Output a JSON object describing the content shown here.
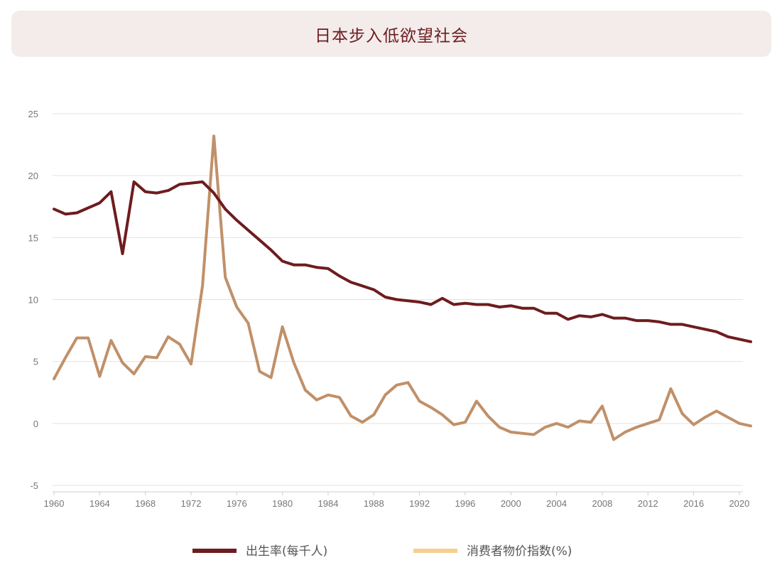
{
  "title": "日本步入低欲望社会",
  "chart_data": {
    "type": "line",
    "title": "日本步入低欲望社会",
    "xlabel": "",
    "ylabel": "",
    "xlim": [
      1960,
      2021
    ],
    "ylim": [
      -5,
      25
    ],
    "yticks": [
      -5,
      0,
      5,
      10,
      15,
      20,
      25
    ],
    "xticks": [
      1960,
      1964,
      1968,
      1972,
      1976,
      1980,
      1984,
      1988,
      1992,
      1996,
      2000,
      2004,
      2008,
      2012,
      2016,
      2020
    ],
    "grid": "horizontal",
    "legend": "bottom",
    "x": [
      1960,
      1961,
      1962,
      1963,
      1964,
      1965,
      1966,
      1967,
      1968,
      1969,
      1970,
      1971,
      1972,
      1973,
      1974,
      1975,
      1976,
      1977,
      1978,
      1979,
      1980,
      1981,
      1982,
      1983,
      1984,
      1985,
      1986,
      1987,
      1988,
      1989,
      1990,
      1991,
      1992,
      1993,
      1994,
      1995,
      1996,
      1997,
      1998,
      1999,
      2000,
      2001,
      2002,
      2003,
      2004,
      2005,
      2006,
      2007,
      2008,
      2009,
      2010,
      2011,
      2012,
      2013,
      2014,
      2015,
      2016,
      2017,
      2018,
      2019,
      2020,
      2021
    ],
    "series": [
      {
        "name": "出生率(每千人)",
        "color": "#6e1c1f",
        "values": [
          17.3,
          16.9,
          17.0,
          17.4,
          17.8,
          18.7,
          13.7,
          19.5,
          18.7,
          18.6,
          18.8,
          19.3,
          19.4,
          19.5,
          18.6,
          17.3,
          16.4,
          15.6,
          14.8,
          14.0,
          13.1,
          12.8,
          12.8,
          12.6,
          12.5,
          11.9,
          11.4,
          11.1,
          10.8,
          10.2,
          10.0,
          9.9,
          9.8,
          9.6,
          10.1,
          9.6,
          9.7,
          9.6,
          9.6,
          9.4,
          9.5,
          9.3,
          9.3,
          8.9,
          8.9,
          8.4,
          8.7,
          8.6,
          8.8,
          8.5,
          8.5,
          8.3,
          8.3,
          8.2,
          8.0,
          8.0,
          7.8,
          7.6,
          7.4,
          7.0,
          6.8,
          6.6
        ]
      },
      {
        "name": "消费者物价指数(%)",
        "color": "#c19068",
        "legend_color": "#f5d08f",
        "values": [
          3.6,
          5.3,
          6.9,
          6.9,
          3.8,
          6.7,
          4.9,
          4.0,
          5.4,
          5.3,
          7.0,
          6.4,
          4.8,
          11.1,
          23.2,
          11.8,
          9.4,
          8.1,
          4.2,
          3.7,
          7.8,
          4.9,
          2.7,
          1.9,
          2.3,
          2.1,
          0.6,
          0.1,
          0.7,
          2.3,
          3.1,
          3.3,
          1.8,
          1.3,
          0.7,
          -0.1,
          0.1,
          1.8,
          0.6,
          -0.3,
          -0.7,
          -0.8,
          -0.9,
          -0.3,
          0.0,
          -0.3,
          0.2,
          0.1,
          1.4,
          -1.3,
          -0.7,
          -0.3,
          0.0,
          0.3,
          2.8,
          0.8,
          -0.1,
          0.5,
          1.0,
          0.5,
          0.0,
          -0.2
        ]
      }
    ]
  }
}
